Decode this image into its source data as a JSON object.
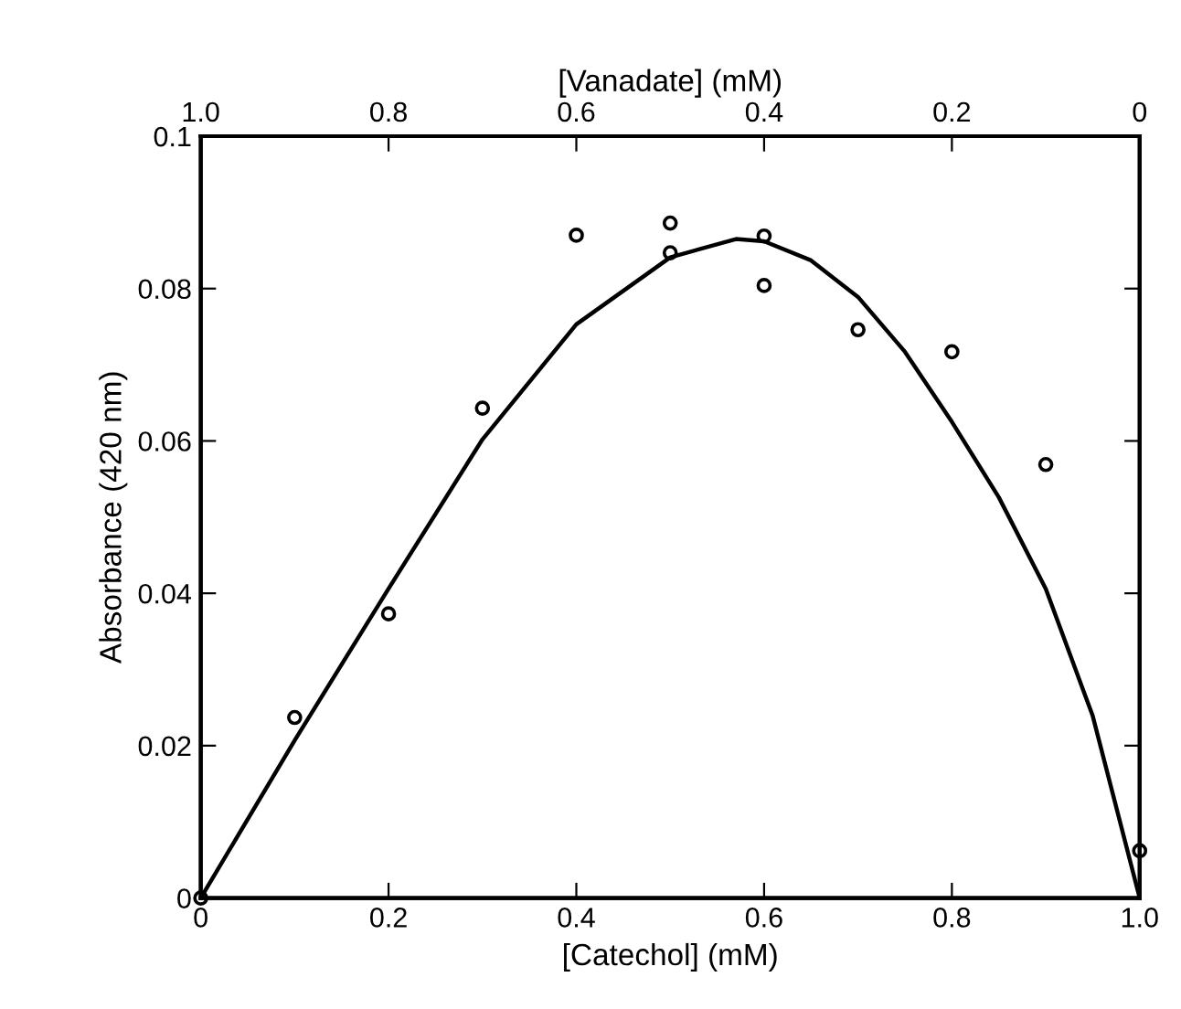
{
  "chart_data": {
    "type": "scatter",
    "xlabel": "[Catechol] (mM)",
    "ylabel": "Absorbance (420 nm)",
    "x2label": "[Vanadate] (mM)",
    "xlim": [
      0,
      1.0
    ],
    "xticks": [
      0,
      0.2,
      0.4,
      0.6,
      0.8,
      {
        "value": 1.0,
        "label": "1.0"
      }
    ],
    "x2lim": [
      1.0,
      0
    ],
    "x2ticks": [
      {
        "value": 1.0,
        "label": "1.0"
      },
      0.8,
      0.6,
      0.4,
      0.2,
      0
    ],
    "ylim": [
      0,
      0.1
    ],
    "yticks": [
      0,
      0.02,
      0.04,
      0.06,
      0.08,
      0.1
    ],
    "grid": false,
    "marker": "circle",
    "series": [
      {
        "color": "#000000",
        "x": [
          0,
          0.1,
          0.2,
          0.3,
          0.4,
          0.5,
          0.5,
          0.6,
          0.6,
          0.7,
          0.8,
          0.9,
          1.0
        ],
        "values": [
          0,
          0.0237,
          0.0373,
          0.0643,
          0.087,
          0.0886,
          0.0847,
          0.0869,
          0.0804,
          0.0746,
          0.0717,
          0.0569,
          0.0062
        ]
      },
      {
        "type": "line",
        "color": "#000000",
        "marker": "none",
        "line_style": "solid",
        "x": [
          0,
          0.1,
          0.2,
          0.3,
          0.4,
          0.5,
          0.57,
          0.6,
          0.65,
          0.7,
          0.75,
          0.8,
          0.85,
          0.9,
          0.95,
          1.0
        ],
        "values": [
          0,
          0.0207,
          0.0406,
          0.0602,
          0.0753,
          0.0841,
          0.0865,
          0.0862,
          0.0837,
          0.0789,
          0.0717,
          0.0625,
          0.0526,
          0.0406,
          0.0239,
          0
        ]
      }
    ]
  }
}
